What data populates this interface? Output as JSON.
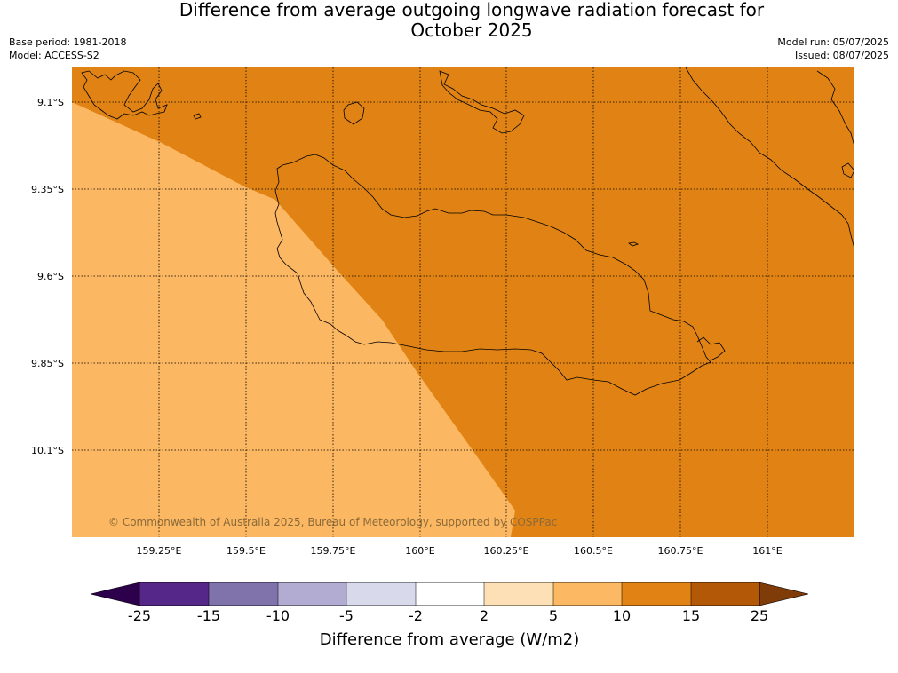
{
  "title_line1": "Difference from average outgoing longwave radiation forecast for",
  "title_line2": "October 2025",
  "base_period": "Base period: 1981-2018",
  "model": "Model: ACCESS-S2",
  "model_run": "Model run: 05/07/2025",
  "issued": "Issued: 08/07/2025",
  "copyright": "© Commonwealth of Australia 2025, Bureau of Meteorology, supported by COSPPac",
  "map": {
    "lat_labels": [
      "9.1°S",
      "9.35°S",
      "9.6°S",
      "9.85°S",
      "10.1°S"
    ],
    "lon_labels": [
      "159.25°E",
      "159.5°E",
      "159.75°E",
      "160°E",
      "160.25°E",
      "160.5°E",
      "160.75°E",
      "161°E"
    ],
    "fill_colors": {
      "10_to_15": "#e08314",
      "5_to_10": "#fbb761"
    }
  },
  "colorbar": {
    "title": "Difference from average (W/m2)",
    "ticks": [
      "-25",
      "-15",
      "-10",
      "-5",
      "-2",
      "2",
      "5",
      "10",
      "15",
      "25"
    ],
    "colors": [
      "#2d004b",
      "#542788",
      "#8073ac",
      "#b2abd2",
      "#d8daeb",
      "#ffffff",
      "#fee0b6",
      "#fdb863",
      "#e08214",
      "#b35806",
      "#7f3b08"
    ]
  }
}
